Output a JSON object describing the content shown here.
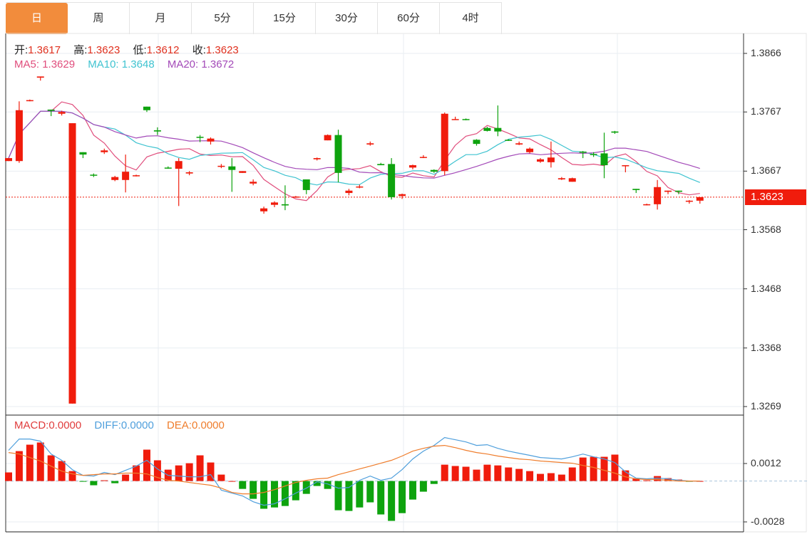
{
  "tabs": [
    {
      "label": "日",
      "active": true
    },
    {
      "label": "周",
      "active": false
    },
    {
      "label": "月",
      "active": false
    },
    {
      "label": "5分",
      "active": false
    },
    {
      "label": "15分",
      "active": false
    },
    {
      "label": "30分",
      "active": false
    },
    {
      "label": "60分",
      "active": false
    },
    {
      "label": "4时",
      "active": false
    }
  ],
  "ohlc_legend": {
    "open_label": "开:",
    "open": "1.3617",
    "high_label": "高:",
    "high": "1.3623",
    "low_label": "低:",
    "low": "1.3612",
    "close_label": "收:",
    "close": "1.3623"
  },
  "ma_legend": {
    "ma5_label": "MA5:",
    "ma5": "1.3629",
    "ma10_label": "MA10:",
    "ma10": "1.3648",
    "ma20_label": "MA20:",
    "ma20": "1.3672"
  },
  "macd_legend": {
    "macd_label": "MACD:",
    "macd": "0.0000",
    "diff_label": "DIFF:",
    "diff": "0.0000",
    "dea_label": "DEA:",
    "dea": "0.0000"
  },
  "last_price": "1.3623",
  "colors": {
    "up": "#f01c0c",
    "down": "#0ea30e",
    "tab_active": "#f28c3c",
    "ma5": "#e04d7c",
    "ma10": "#3fc3d0",
    "ma20": "#a349b8",
    "diff": "#4f9fdc",
    "dea": "#ef7d2c",
    "macd_text": "#e03c3c"
  },
  "chart_data": [
    {
      "type": "candlestick",
      "title": "",
      "ylim": [
        1.3269,
        1.3866
      ],
      "yticks": [
        "1.3866",
        "1.3767",
        "1.3667",
        "1.3568",
        "1.3468",
        "1.3368",
        "1.3269"
      ],
      "grid": true,
      "moving_averages": [
        5,
        10,
        20
      ],
      "candles": [
        [
          1.3684,
          1.3689,
          1.3684,
          1.3689
        ],
        [
          1.3684,
          1.3785,
          1.3681,
          1.377
        ],
        [
          1.3786,
          1.3788,
          1.3785,
          1.3787
        ],
        [
          1.3825,
          1.3827,
          1.382,
          1.3827
        ],
        [
          1.3771,
          1.3771,
          1.376,
          1.3769
        ],
        [
          1.3764,
          1.3769,
          1.3761,
          1.3767
        ],
        [
          1.3274,
          1.3748,
          1.3274,
          1.3748
        ],
        [
          1.3699,
          1.3699,
          1.3689,
          1.3695
        ],
        [
          1.3661,
          1.3663,
          1.3657,
          1.366
        ],
        [
          1.3699,
          1.3705,
          1.3696,
          1.3702
        ],
        [
          1.3652,
          1.3659,
          1.365,
          1.3657
        ],
        [
          1.3652,
          1.3695,
          1.3631,
          1.3666
        ],
        [
          1.3659,
          1.3661,
          1.3658,
          1.366
        ],
        [
          1.3776,
          1.3776,
          1.3767,
          1.377
        ],
        [
          1.3736,
          1.3741,
          1.3728,
          1.3734
        ],
        [
          1.3673,
          1.3675,
          1.3671,
          1.3672
        ],
        [
          1.3671,
          1.3689,
          1.3608,
          1.3684
        ],
        [
          1.3663,
          1.3667,
          1.366,
          1.3665
        ],
        [
          1.3725,
          1.3728,
          1.3716,
          1.3724
        ],
        [
          1.3717,
          1.3724,
          1.3712,
          1.3722
        ],
        [
          1.3675,
          1.3679,
          1.3672,
          1.3676
        ],
        [
          1.3675,
          1.3689,
          1.3632,
          1.3669
        ],
        [
          1.3664,
          1.3667,
          1.3664,
          1.3667
        ],
        [
          1.3646,
          1.3653,
          1.3643,
          1.3649
        ],
        [
          1.3599,
          1.3607,
          1.3595,
          1.3604
        ],
        [
          1.361,
          1.3616,
          1.3606,
          1.3614
        ],
        [
          1.3611,
          1.3643,
          1.3601,
          1.3609
        ],
        [
          1.3623,
          1.3625,
          1.3622,
          1.3624
        ],
        [
          1.3653,
          1.3653,
          1.3628,
          1.3635
        ],
        [
          1.3687,
          1.369,
          1.3685,
          1.3689
        ],
        [
          1.3719,
          1.3729,
          1.3719,
          1.3728
        ],
        [
          1.3728,
          1.3737,
          1.3648,
          1.3664
        ],
        [
          1.363,
          1.3637,
          1.3626,
          1.3634
        ],
        [
          1.364,
          1.3644,
          1.3638,
          1.3641
        ],
        [
          1.3712,
          1.3717,
          1.371,
          1.3714
        ],
        [
          1.3679,
          1.3681,
          1.3677,
          1.3677
        ],
        [
          1.3679,
          1.3689,
          1.3619,
          1.3623
        ],
        [
          1.3625,
          1.3629,
          1.362,
          1.3628
        ],
        [
          1.3673,
          1.3678,
          1.367,
          1.3677
        ],
        [
          1.369,
          1.3694,
          1.3689,
          1.3691
        ],
        [
          1.3669,
          1.367,
          1.3664,
          1.3666
        ],
        [
          1.3667,
          1.3766,
          1.366,
          1.3764
        ],
        [
          1.3754,
          1.3759,
          1.3754,
          1.3755
        ],
        [
          1.3755,
          1.3756,
          1.3753,
          1.3754
        ],
        [
          1.372,
          1.3721,
          1.371,
          1.3713
        ],
        [
          1.374,
          1.3742,
          1.3734,
          1.3735
        ],
        [
          1.374,
          1.3778,
          1.3726,
          1.3734
        ],
        [
          1.372,
          1.3721,
          1.3718,
          1.3719
        ],
        [
          1.3712,
          1.3717,
          1.3711,
          1.3714
        ],
        [
          1.3699,
          1.3707,
          1.3697,
          1.3705
        ],
        [
          1.3683,
          1.3689,
          1.3681,
          1.3687
        ],
        [
          1.3682,
          1.3717,
          1.3673,
          1.369
        ],
        [
          1.3653,
          1.3657,
          1.3652,
          1.3655
        ],
        [
          1.3649,
          1.3656,
          1.3649,
          1.3655
        ],
        [
          1.37,
          1.3701,
          1.3689,
          1.3699
        ],
        [
          1.3696,
          1.3699,
          1.3691,
          1.3695
        ],
        [
          1.3697,
          1.3732,
          1.3655,
          1.3677
        ],
        [
          1.3734,
          1.3735,
          1.373,
          1.3732
        ],
        [
          1.3676,
          1.3677,
          1.3665,
          1.3677
        ],
        [
          1.3637,
          1.3637,
          1.363,
          1.3635
        ],
        [
          1.361,
          1.3612,
          1.3609,
          1.3611
        ],
        [
          1.3611,
          1.3652,
          1.3602,
          1.364
        ],
        [
          1.3632,
          1.3634,
          1.3628,
          1.3634
        ],
        [
          1.3634,
          1.3634,
          1.3628,
          1.3632
        ],
        [
          1.3616,
          1.3618,
          1.3612,
          1.3617
        ],
        [
          1.3617,
          1.3623,
          1.3612,
          1.3623
        ]
      ],
      "candle_fields": [
        "open",
        "high",
        "low",
        "close"
      ]
    },
    {
      "type": "bar+line",
      "title": "",
      "ylim": [
        -0.0028,
        0.0012
      ],
      "yticks": [
        "0.0012",
        "-0.0028"
      ],
      "grid": true,
      "macd": [
        0.00059,
        0.00205,
        0.00249,
        0.00264,
        0.00176,
        0.00137,
        0.00068,
        -5e-05,
        -0.00029,
        5e-05,
        -0.00015,
        0.00044,
        0.00107,
        0.00215,
        0.00142,
        0.00078,
        0.00107,
        0.00122,
        0.00176,
        0.00127,
        0.00044,
        0,
        -0.00054,
        -0.00122,
        -0.0019,
        -0.00181,
        -0.00171,
        -0.00132,
        -0.00088,
        -0.00034,
        -0.00054,
        -0.002,
        -0.00205,
        -0.00181,
        -0.00146,
        -0.00229,
        -0.00273,
        -0.0022,
        -0.00127,
        -0.00073,
        -0.0002,
        0.00112,
        0.00103,
        0.00098,
        0.00078,
        0.00112,
        0.00107,
        0.00093,
        0.00083,
        0.00068,
        0.00049,
        0.00054,
        0.00044,
        0.00093,
        0.00161,
        0.00166,
        0.00166,
        0.00181,
        0.00073,
        0.00015,
        5e-05,
        0.00034,
        0.0002,
        0.0001,
        -2e-05,
        0
      ],
      "diff": [
        0.0021,
        0.00288,
        0.00288,
        0.00273,
        0.00185,
        0.00142,
        0.00078,
        0.00039,
        0.00034,
        0.00059,
        0.00044,
        0.00073,
        0.00102,
        0.00142,
        0.00083,
        0.00039,
        0.00034,
        0.00029,
        0.00029,
        0.00044,
        -0.00063,
        -0.00083,
        -0.00102,
        -0.00142,
        -0.00166,
        -0.00156,
        -0.00122,
        -0.00083,
        -0.00049,
        -5e-05,
        -0.0002,
        -0.00049,
        -0.00044,
        5e-05,
        0.00034,
        5e-05,
        0.0002,
        0.00078,
        0.00151,
        0.00205,
        0.00244,
        0.00298,
        0.00283,
        0.00268,
        0.00244,
        0.00249,
        0.00224,
        0.00205,
        0.0019,
        0.00176,
        0.00161,
        0.00156,
        0.00151,
        0.00166,
        0.00185,
        0.00166,
        0.00151,
        0.00127,
        0.00063,
        0.0002,
        0.00015,
        0.0002,
        0.00015,
        5e-05,
        0,
        0
      ],
      "dea": [
        0.00195,
        0.00185,
        0.00161,
        0.00137,
        0.00102,
        0.00068,
        0.00049,
        0.00039,
        0.00044,
        0.00049,
        0.00049,
        0.00054,
        0.00054,
        0.00049,
        0.00024,
        5e-05,
        0,
        -0.0001,
        -0.0002,
        -0.00029,
        -0.00049,
        -0.00078,
        -0.00088,
        -0.00088,
        -0.00078,
        -0.00059,
        -0.00034,
        -0.0001,
        5e-05,
        0.00015,
        0.0002,
        0.00044,
        0.00063,
        0.00083,
        0.00102,
        0.00122,
        0.00142,
        0.00171,
        0.00205,
        0.00224,
        0.00239,
        0.00244,
        0.00229,
        0.0021,
        0.00195,
        0.00185,
        0.00171,
        0.00161,
        0.00151,
        0.00146,
        0.00137,
        0.00132,
        0.00127,
        0.00122,
        0.00107,
        0.00093,
        0.00073,
        0.00054,
        0.00029,
        0.00015,
        0.0001,
        0.0001,
        5e-05,
        0,
        0,
        0
      ]
    }
  ]
}
